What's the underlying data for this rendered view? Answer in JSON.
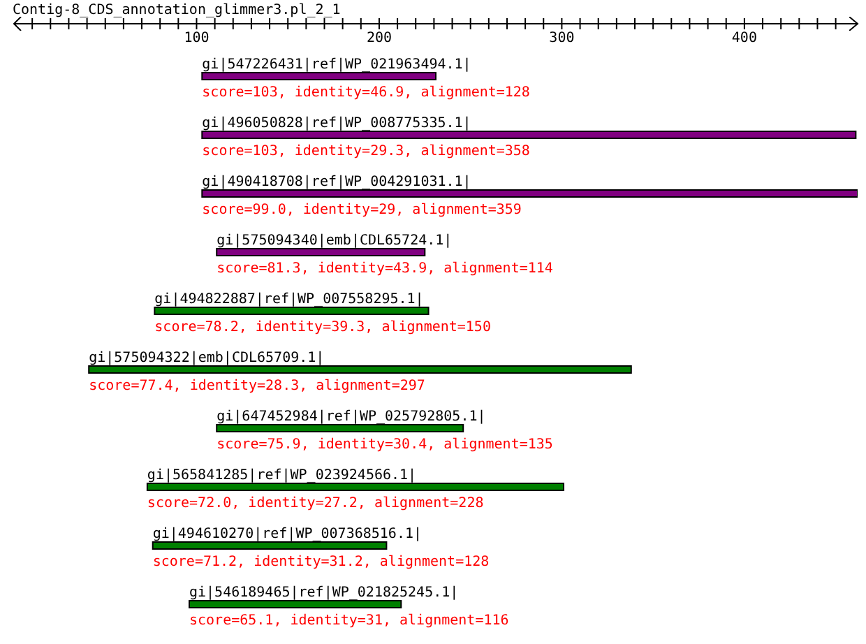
{
  "chart_data": {
    "type": "bar",
    "orientation": "horizontal",
    "title": "Contig-8_CDS_annotation_glimmer3.pl_2_1",
    "categories": [
      "gi|547226431|ref|WP_021963494.1|",
      "gi|496050828|ref|WP_008775335.1|",
      "gi|490418708|ref|WP_004291031.1|",
      "gi|575094340|emb|CDL65724.1|",
      "gi|494822887|ref|WP_007558295.1|",
      "gi|575094322|emb|CDL65709.1|",
      "gi|647452984|ref|WP_025792805.1|",
      "gi|565841285|ref|WP_023924566.1|",
      "gi|494610270|ref|WP_007368516.1|",
      "gi|546189465|ref|WP_021825245.1|"
    ],
    "base": [
      103,
      103,
      103,
      111,
      77,
      41,
      111,
      73,
      76,
      96
    ],
    "values": [
      128,
      358,
      359,
      114,
      150,
      297,
      135,
      228,
      128,
      116
    ],
    "colors": [
      "#800080",
      "#800080",
      "#800080",
      "#800080",
      "#008000",
      "#008000",
      "#008000",
      "#008000",
      "#008000",
      "#008000"
    ],
    "annotations": [
      "score=103, identity=46.9, alignment=128",
      "score=103, identity=29.3, alignment=358",
      "score=99.0, identity=29, alignment=359",
      "score=81.3, identity=43.9, alignment=114",
      "score=78.2, identity=39.3, alignment=150",
      "score=77.4, identity=28.3, alignment=297",
      "score=75.9, identity=30.4, alignment=135",
      "score=72.0, identity=27.2, alignment=228",
      "score=71.2, identity=31.2, alignment=128",
      "score=65.1, identity=31, alignment=116"
    ],
    "xlim": [
      0,
      462
    ],
    "xticks": [
      {
        "value": 10,
        "label": null
      },
      {
        "value": 20,
        "label": null
      },
      {
        "value": 30,
        "label": null
      },
      {
        "value": 40,
        "label": null
      },
      {
        "value": 50,
        "label": null
      },
      {
        "value": 60,
        "label": null
      },
      {
        "value": 70,
        "label": null
      },
      {
        "value": 80,
        "label": null
      },
      {
        "value": 90,
        "label": null
      },
      100,
      {
        "value": 110,
        "label": null
      },
      {
        "value": 120,
        "label": null
      },
      {
        "value": 130,
        "label": null
      },
      {
        "value": 140,
        "label": null
      },
      {
        "value": 150,
        "label": null
      },
      {
        "value": 160,
        "label": null
      },
      {
        "value": 170,
        "label": null
      },
      {
        "value": 180,
        "label": null
      },
      {
        "value": 190,
        "label": null
      },
      200,
      {
        "value": 210,
        "label": null
      },
      {
        "value": 220,
        "label": null
      },
      {
        "value": 230,
        "label": null
      },
      {
        "value": 240,
        "label": null
      },
      {
        "value": 250,
        "label": null
      },
      {
        "value": 260,
        "label": null
      },
      {
        "value": 270,
        "label": null
      },
      {
        "value": 280,
        "label": null
      },
      {
        "value": 290,
        "label": null
      },
      300,
      {
        "value": 310,
        "label": null
      },
      {
        "value": 320,
        "label": null
      },
      {
        "value": 330,
        "label": null
      },
      {
        "value": 340,
        "label": null
      },
      {
        "value": 350,
        "label": null
      },
      {
        "value": 360,
        "label": null
      },
      {
        "value": 370,
        "label": null
      },
      {
        "value": 380,
        "label": null
      },
      {
        "value": 390,
        "label": null
      },
      400,
      {
        "value": 410,
        "label": null
      },
      {
        "value": 420,
        "label": null
      },
      {
        "value": 430,
        "label": null
      },
      {
        "value": 440,
        "label": null
      },
      {
        "value": 450,
        "label": null
      }
    ],
    "grid": false,
    "legend": false
  }
}
